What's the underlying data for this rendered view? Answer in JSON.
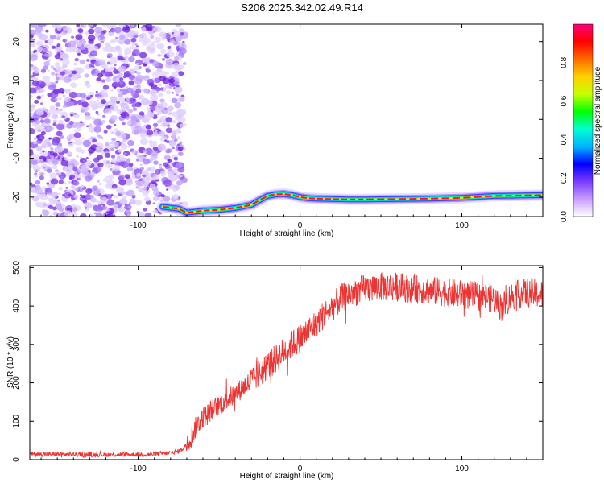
{
  "title": "S206.2025.342.02.49.R14",
  "chart_data": [
    {
      "type": "heatmap",
      "xlabel": "Height of straight line (km)",
      "ylabel": "Frequency (Hz)",
      "xlim": [
        -167,
        150
      ],
      "ylim": [
        -25,
        24.5
      ],
      "xticks": [
        -100,
        0,
        100
      ],
      "xtick_labels": [
        "-100",
        "0",
        "100"
      ],
      "yticks": [
        -20,
        -10,
        0,
        10,
        20
      ],
      "ytick_labels": [
        "-20",
        "-10",
        "0",
        "10",
        "20"
      ],
      "noise_region_x": [
        -167,
        -75
      ],
      "ridge": {
        "x": [
          -85,
          -75,
          -70,
          -60,
          -50,
          -40,
          -30,
          -25,
          -20,
          -15,
          -10,
          -5,
          0,
          5,
          10,
          20,
          30,
          40,
          60,
          80,
          100,
          120,
          150
        ],
        "y": [
          -22.5,
          -23,
          -24,
          -23.5,
          -23.3,
          -22.8,
          -22,
          -20.8,
          -19.7,
          -19.3,
          -19.2,
          -19.5,
          -20,
          -20.3,
          -20.4,
          -20.5,
          -20.6,
          -20.6,
          -20.5,
          -20.4,
          -20.2,
          -19.7,
          -19.5
        ]
      },
      "colorbar": {
        "label": "Normalized spectral amplitude",
        "range": [
          0,
          1
        ],
        "ticks": [
          0.0,
          0.2,
          0.4,
          0.6,
          0.8
        ],
        "tick_labels": [
          "0.0",
          "0.2",
          "0.4",
          "0.6",
          "0.8"
        ],
        "colors": [
          "#ffffff",
          "#c89cff",
          "#7a3cff",
          "#0000ff",
          "#00b4ff",
          "#00ffd0",
          "#00ff00",
          "#c8ff00",
          "#ffd000",
          "#ff6a00",
          "#ff0000",
          "#ff0078"
        ]
      }
    },
    {
      "type": "line",
      "xlabel": "Height of straight line (km)",
      "ylabel": "SNR (10 * v/v)",
      "xlim": [
        -167,
        150
      ],
      "ylim": [
        0,
        505
      ],
      "xticks": [
        -100,
        0,
        100
      ],
      "xtick_labels": [
        "-100",
        "0",
        "100"
      ],
      "yticks": [
        0,
        100,
        200,
        300,
        400,
        500
      ],
      "ytick_labels": [
        "0",
        "100",
        "200",
        "300",
        "400",
        "500"
      ],
      "series": [
        {
          "name": "SNR",
          "color": "#ee3333",
          "x": [
            -167,
            -150,
            -130,
            -110,
            -90,
            -80,
            -75,
            -72,
            -70,
            -67,
            -65,
            -62,
            -60,
            -55,
            -50,
            -45,
            -40,
            -35,
            -30,
            -25,
            -20,
            -15,
            -10,
            -5,
            0,
            5,
            10,
            15,
            20,
            25,
            30,
            40,
            50,
            60,
            70,
            80,
            90,
            100,
            110,
            120,
            125,
            130,
            140,
            150
          ],
          "values": [
            15,
            14,
            13,
            13,
            14,
            18,
            22,
            30,
            42,
            60,
            80,
            100,
            110,
            128,
            140,
            158,
            170,
            190,
            205,
            225,
            245,
            262,
            282,
            300,
            315,
            335,
            355,
            378,
            398,
            418,
            432,
            445,
            450,
            450,
            445,
            440,
            435,
            430,
            425,
            420,
            395,
            425,
            435,
            430
          ]
        }
      ]
    }
  ]
}
